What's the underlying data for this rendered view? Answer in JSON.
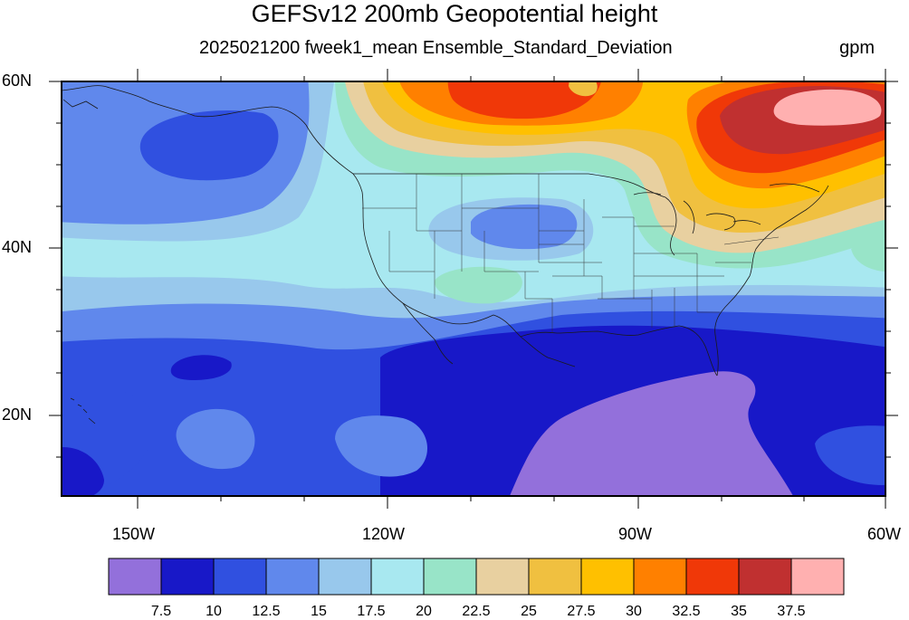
{
  "title": "GEFSv12 200mb Geopotential height",
  "subtitle": "2025021200 fweek1_mean Ensemble_Standard_Deviation",
  "units": "gpm",
  "axes": {
    "lat_labels": [
      "60N",
      "40N",
      "20N"
    ],
    "lon_labels": [
      "150W",
      "120W",
      "90W",
      "60W"
    ]
  },
  "colorbar": {
    "colors": [
      "#9370db",
      "#1818c8",
      "#3050e0",
      "#6088ec",
      "#98c8ec",
      "#a8e8f0",
      "#98e4c8",
      "#e8d0a0",
      "#f0c040",
      "#ffc000",
      "#ff8000",
      "#f03808",
      "#c03030",
      "#ffb0b0"
    ],
    "ticks": [
      "7.5",
      "10",
      "12.5",
      "15",
      "17.5",
      "20",
      "22.5",
      "25",
      "27.5",
      "30",
      "32.5",
      "35",
      "37.5"
    ]
  }
}
